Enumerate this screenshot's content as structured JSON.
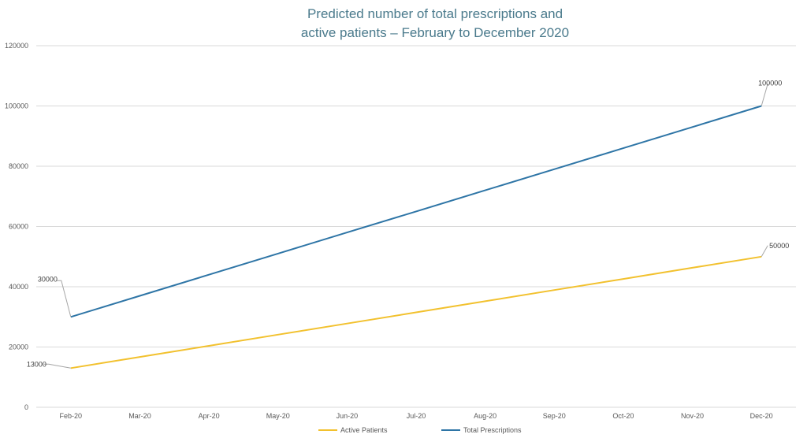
{
  "chart_data": {
    "type": "line",
    "title_line1": "Predicted number of total prescriptions and",
    "title_line2": "active patients – February to December 2020",
    "categories": [
      "Feb-20",
      "Mar-20",
      "Apr-20",
      "May-20",
      "Jun-20",
      "Jul-20",
      "Aug-20",
      "Sep-20",
      "Oct-20",
      "Nov-20",
      "Dec-20"
    ],
    "series": [
      {
        "name": "Active Patients",
        "color": "#f2c12e",
        "values": [
          13000,
          16700,
          20400,
          24100,
          27800,
          31500,
          35200,
          38900,
          42600,
          46300,
          50000
        ]
      },
      {
        "name": "Total Prescriptions",
        "color": "#2e75a6",
        "values": [
          30000,
          37000,
          44000,
          51000,
          58000,
          65000,
          72000,
          79000,
          86000,
          93000,
          100000
        ]
      }
    ],
    "data_labels": [
      {
        "series": 0,
        "index": 0,
        "text": "13000"
      },
      {
        "series": 0,
        "index": 10,
        "text": "50000"
      },
      {
        "series": 1,
        "index": 0,
        "text": "30000"
      },
      {
        "series": 1,
        "index": 10,
        "text": "100000"
      }
    ],
    "ylim": [
      0,
      120000
    ],
    "yticks": [
      "0",
      "20000",
      "40000",
      "60000",
      "80000",
      "100000",
      "120000"
    ],
    "grid": true,
    "legend": "bottom",
    "xlabel": "",
    "ylabel": ""
  }
}
